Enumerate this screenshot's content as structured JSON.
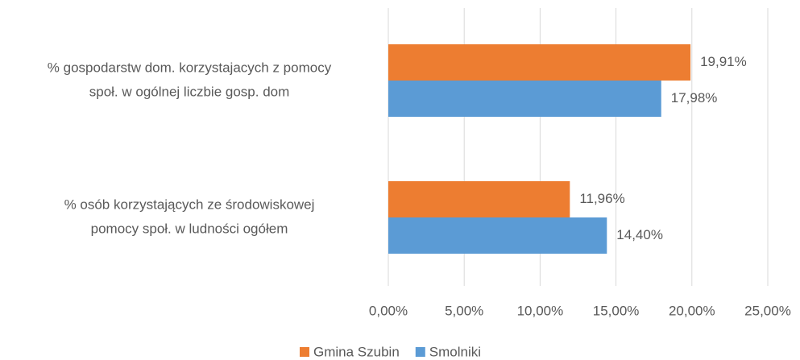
{
  "chart_data": {
    "type": "barh",
    "categories": [
      [
        "% gospodarstw dom. korzystajacych z pomocy",
        "społ. w ogólnej liczbie gosp. dom"
      ],
      [
        "% osób korzystających ze środowiskowej",
        "pomocy społ. w ludności ogółem"
      ]
    ],
    "series": [
      {
        "name": "Gmina Szubin",
        "color": "#ED7D31",
        "values": [
          19.91,
          11.96
        ],
        "value_labels": [
          "19,91%",
          "11,96%"
        ]
      },
      {
        "name": "Smolniki",
        "color": "#5B9BD5",
        "values": [
          17.98,
          14.4
        ],
        "value_labels": [
          "17,98%",
          "14,40%"
        ]
      }
    ],
    "xlim": [
      0,
      25
    ],
    "xticks": [
      {
        "value": 0,
        "label": "0,00%"
      },
      {
        "value": 5,
        "label": "5,00%"
      },
      {
        "value": 10,
        "label": "10,00%"
      },
      {
        "value": 15,
        "label": "15,00%"
      },
      {
        "value": 20,
        "label": "20,00%"
      },
      {
        "value": 25,
        "label": "25,00%"
      }
    ],
    "grid": true,
    "legend": "bottom"
  }
}
